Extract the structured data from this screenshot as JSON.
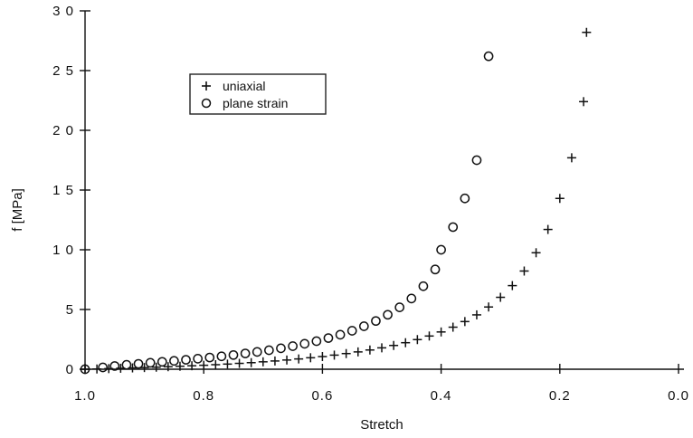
{
  "chart_data": {
    "type": "scatter",
    "title": "",
    "xlabel": "Stretch",
    "ylabel": "f  [MPa]",
    "xlim": [
      1.0,
      0.0
    ],
    "ylim": [
      0,
      30
    ],
    "x_reversed": true,
    "grid": false,
    "legend_placement": "upper-left",
    "x_ticks": [
      1.0,
      0.8,
      0.6,
      0.4,
      0.2,
      0.0
    ],
    "x_tick_labels": [
      "1.0",
      "0.8",
      "0.6",
      "0.4",
      "0.2",
      "0.0"
    ],
    "y_ticks": [
      0,
      5,
      10,
      15,
      20,
      25,
      30
    ],
    "y_tick_labels": [
      "0",
      "5",
      "1 0",
      "1 5",
      "2 0",
      "2 5",
      "3 0"
    ],
    "series": [
      {
        "name": "uniaxial",
        "marker": "plus",
        "points": [
          [
            1.0,
            0.0
          ],
          [
            0.98,
            0.02
          ],
          [
            0.96,
            0.05
          ],
          [
            0.94,
            0.08
          ],
          [
            0.92,
            0.11
          ],
          [
            0.9,
            0.14
          ],
          [
            0.88,
            0.17
          ],
          [
            0.86,
            0.21
          ],
          [
            0.84,
            0.25
          ],
          [
            0.82,
            0.29
          ],
          [
            0.8,
            0.33
          ],
          [
            0.78,
            0.38
          ],
          [
            0.76,
            0.43
          ],
          [
            0.74,
            0.49
          ],
          [
            0.72,
            0.55
          ],
          [
            0.7,
            0.62
          ],
          [
            0.68,
            0.69
          ],
          [
            0.66,
            0.77
          ],
          [
            0.64,
            0.86
          ],
          [
            0.62,
            0.96
          ],
          [
            0.6,
            1.06
          ],
          [
            0.58,
            1.18
          ],
          [
            0.56,
            1.31
          ],
          [
            0.54,
            1.45
          ],
          [
            0.52,
            1.61
          ],
          [
            0.5,
            1.79
          ],
          [
            0.48,
            1.99
          ],
          [
            0.46,
            2.22
          ],
          [
            0.44,
            2.48
          ],
          [
            0.42,
            2.78
          ],
          [
            0.4,
            3.12
          ],
          [
            0.38,
            3.52
          ],
          [
            0.36,
            3.99
          ],
          [
            0.34,
            4.55
          ],
          [
            0.32,
            5.21
          ],
          [
            0.3,
            6.02
          ],
          [
            0.28,
            7.0
          ],
          [
            0.26,
            8.22
          ],
          [
            0.24,
            9.75
          ],
          [
            0.22,
            11.7
          ],
          [
            0.2,
            14.3
          ],
          [
            0.18,
            17.7
          ],
          [
            0.16,
            22.4
          ],
          [
            0.155,
            28.2
          ]
        ]
      },
      {
        "name": "plane strain",
        "marker": "circle",
        "points": [
          [
            1.0,
            0.0
          ],
          [
            0.97,
            0.15
          ],
          [
            0.95,
            0.27
          ],
          [
            0.93,
            0.37
          ],
          [
            0.91,
            0.45
          ],
          [
            0.89,
            0.54
          ],
          [
            0.87,
            0.62
          ],
          [
            0.85,
            0.7
          ],
          [
            0.83,
            0.79
          ],
          [
            0.81,
            0.88
          ],
          [
            0.79,
            0.98
          ],
          [
            0.77,
            1.08
          ],
          [
            0.75,
            1.19
          ],
          [
            0.73,
            1.32
          ],
          [
            0.71,
            1.45
          ],
          [
            0.69,
            1.59
          ],
          [
            0.67,
            1.75
          ],
          [
            0.65,
            1.93
          ],
          [
            0.63,
            2.13
          ],
          [
            0.61,
            2.35
          ],
          [
            0.59,
            2.61
          ],
          [
            0.57,
            2.89
          ],
          [
            0.55,
            3.22
          ],
          [
            0.53,
            3.6
          ],
          [
            0.51,
            4.04
          ],
          [
            0.49,
            4.56
          ],
          [
            0.47,
            5.18
          ],
          [
            0.45,
            5.92
          ],
          [
            0.43,
            6.95
          ],
          [
            0.41,
            8.35
          ],
          [
            0.4,
            10.0
          ],
          [
            0.38,
            11.9
          ],
          [
            0.36,
            14.3
          ],
          [
            0.34,
            17.5
          ],
          [
            0.32,
            26.2
          ]
        ]
      }
    ]
  }
}
